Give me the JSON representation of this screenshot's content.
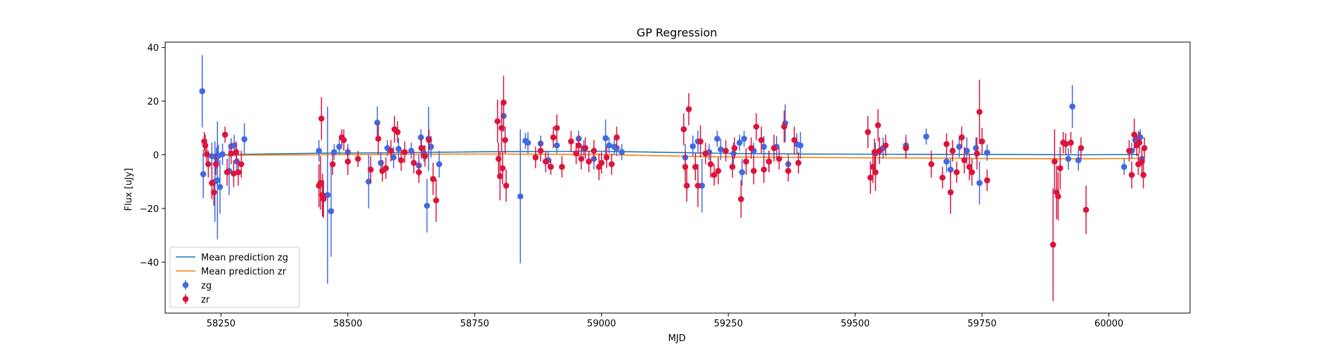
{
  "chart_data": {
    "type": "scatter",
    "title": "GP Regression",
    "xlabel": "MJD",
    "ylabel": "Flux [uJy]",
    "xlim": [
      58140,
      60160
    ],
    "ylim": [
      -59,
      42
    ],
    "xticks": [
      58250,
      58500,
      58750,
      59000,
      59250,
      59500,
      59750,
      60000
    ],
    "yticks": [
      -40,
      -20,
      0,
      20,
      40
    ],
    "grid": false,
    "legend_position": "lower-left",
    "lines": [
      {
        "name": "Mean prediction zg",
        "color": "#1f77b4",
        "x": [
          58212,
          58300,
          58450,
          58600,
          58800,
          59000,
          59100,
          59250,
          59400,
          59600,
          59800,
          59950,
          60060
        ],
        "y": [
          -0.2,
          0.2,
          0.6,
          0.8,
          1.2,
          1.3,
          1.0,
          0.5,
          0.3,
          0.2,
          0.1,
          0.0,
          0.1
        ]
      },
      {
        "name": "Mean prediction zr",
        "color": "#ff7f0e",
        "x": [
          58212,
          58300,
          58450,
          58600,
          58800,
          59000,
          59100,
          59250,
          59400,
          59600,
          59800,
          59950,
          60060
        ],
        "y": [
          -0.2,
          -0.1,
          0.0,
          0.2,
          0.3,
          0.1,
          -0.3,
          -0.8,
          -1.0,
          -1.2,
          -1.4,
          -1.5,
          -1.3
        ]
      }
    ],
    "series": [
      {
        "name": "zg",
        "color": "#4169e1",
        "points": [
          [
            58213,
            23.7,
            13.5
          ],
          [
            58215,
            -7.2,
            9
          ],
          [
            58232,
            -0.5,
            5
          ],
          [
            58238,
            -10,
            15
          ],
          [
            58241,
            -1.2,
            4
          ],
          [
            58243,
            -9.5,
            22
          ],
          [
            58245,
            -0.3,
            4
          ],
          [
            58248,
            -12,
            10
          ],
          [
            58253,
            0.2,
            4
          ],
          [
            58266,
            -6,
            9
          ],
          [
            58270,
            3.2,
            3
          ],
          [
            58276,
            3.5,
            4
          ],
          [
            58281,
            -2.5,
            5
          ],
          [
            58296,
            5.8,
            6
          ],
          [
            58443,
            1.5,
            4
          ],
          [
            58460,
            -15,
            33
          ],
          [
            58467,
            -21,
            17
          ],
          [
            58473,
            1.0,
            3
          ],
          [
            58483,
            3.0,
            3
          ],
          [
            58500,
            1.0,
            3
          ],
          [
            58541,
            -10,
            10
          ],
          [
            58558,
            12,
            6
          ],
          [
            58565,
            -3,
            4
          ],
          [
            58578,
            2.5,
            3
          ],
          [
            58590,
            -1,
            4
          ],
          [
            58600,
            2.2,
            4
          ],
          [
            58625,
            1.5,
            3
          ],
          [
            58640,
            -4,
            4
          ],
          [
            58644,
            6.5,
            3
          ],
          [
            58650,
            0.5,
            3
          ],
          [
            58656,
            -19,
            10
          ],
          [
            58659,
            6,
            12
          ],
          [
            58664,
            3,
            4
          ],
          [
            58680,
            -3.5,
            5
          ],
          [
            58807,
            14.5,
            6
          ],
          [
            58840,
            -15.5,
            25
          ],
          [
            58850,
            5.2,
            3
          ],
          [
            58855,
            4.5,
            4
          ],
          [
            58880,
            4.2,
            3
          ],
          [
            58895,
            -2,
            3
          ],
          [
            58912,
            3.5,
            3
          ],
          [
            58955,
            6,
            3
          ],
          [
            58965,
            2.5,
            3
          ],
          [
            58985,
            -1.5,
            4
          ],
          [
            59008,
            6.2,
            7
          ],
          [
            59015,
            3.5,
            3
          ],
          [
            59025,
            3,
            3
          ],
          [
            59030,
            2.5,
            3
          ],
          [
            59040,
            1.0,
            3
          ],
          [
            59165,
            -1.0,
            5
          ],
          [
            59180,
            3.2,
            4
          ],
          [
            59190,
            5.0,
            4
          ],
          [
            59198,
            -11.5,
            10
          ],
          [
            59212,
            1.0,
            3
          ],
          [
            59228,
            6,
            3
          ],
          [
            59235,
            2.0,
            4
          ],
          [
            59260,
            0.5,
            4
          ],
          [
            59272,
            4.5,
            3
          ],
          [
            59277,
            -6.5,
            5
          ],
          [
            59281,
            6,
            3
          ],
          [
            59300,
            1.5,
            3
          ],
          [
            59320,
            3,
            4
          ],
          [
            59330,
            -2.5,
            4
          ],
          [
            59345,
            3,
            4
          ],
          [
            59362,
            11.8,
            7
          ],
          [
            59368,
            -3.5,
            4
          ],
          [
            59385,
            4.0,
            4
          ],
          [
            59392,
            3.5,
            5
          ],
          [
            59540,
            0.5,
            4
          ],
          [
            59555,
            2.5,
            4
          ],
          [
            59600,
            3.5,
            4
          ],
          [
            59640,
            6.8,
            3
          ],
          [
            59680,
            -2.5,
            4
          ],
          [
            59688,
            -5.5,
            4
          ],
          [
            59705,
            3.0,
            4
          ],
          [
            59720,
            1.5,
            5
          ],
          [
            59738,
            2.5,
            4
          ],
          [
            59745,
            -10.5,
            8
          ],
          [
            59760,
            0.8,
            3
          ],
          [
            59920,
            -1.5,
            4
          ],
          [
            59928,
            18,
            8
          ],
          [
            59940,
            -2,
            4
          ],
          [
            60030,
            -4.5,
            3
          ],
          [
            60045,
            1.5,
            3
          ],
          [
            60052,
            5.5,
            3
          ],
          [
            60058,
            6,
            3
          ],
          [
            60062,
            6.5,
            3
          ],
          [
            60065,
            -1.5,
            3
          ]
        ]
      },
      {
        "name": "zr",
        "color": "#dc143c",
        "points": [
          [
            58217,
            5.0,
            3.5
          ],
          [
            58219,
            3.5,
            4
          ],
          [
            58222,
            0.2,
            4
          ],
          [
            58225,
            -3.5,
            5
          ],
          [
            58232,
            -10.5,
            6
          ],
          [
            58236,
            -14,
            5
          ],
          [
            58240,
            -3.5,
            4
          ],
          [
            58258,
            7.5,
            3
          ],
          [
            58262,
            -6.5,
            5
          ],
          [
            58270,
            0.5,
            4
          ],
          [
            58275,
            -7,
            5
          ],
          [
            58280,
            1.0,
            4
          ],
          [
            58284,
            -6.5,
            5
          ],
          [
            58290,
            -3.5,
            5
          ],
          [
            58443,
            -11.5,
            8
          ],
          [
            58446,
            -10.5,
            10
          ],
          [
            58448,
            13.5,
            8
          ],
          [
            58450,
            -15,
            8
          ],
          [
            58452,
            -16.5,
            7
          ],
          [
            58470,
            -3.5,
            4
          ],
          [
            58488,
            6.5,
            3
          ],
          [
            58492,
            5.5,
            4
          ],
          [
            58500,
            -2.5,
            5
          ],
          [
            58520,
            -1.5,
            3
          ],
          [
            58545,
            -5.5,
            5
          ],
          [
            58560,
            6,
            6
          ],
          [
            58568,
            -6,
            4
          ],
          [
            58575,
            -5,
            4
          ],
          [
            58585,
            1.5,
            4
          ],
          [
            58592,
            9.5,
            5
          ],
          [
            58598,
            8.5,
            4
          ],
          [
            58605,
            -2,
            4
          ],
          [
            58612,
            1.0,
            4
          ],
          [
            58630,
            -3,
            4
          ],
          [
            58640,
            -6.5,
            4
          ],
          [
            58645,
            2.5,
            4
          ],
          [
            58652,
            -0.5,
            4
          ],
          [
            58660,
            5.5,
            4
          ],
          [
            58668,
            -9,
            6
          ],
          [
            58674,
            -17,
            8
          ],
          [
            58795,
            12.5,
            8
          ],
          [
            58797,
            -1.5,
            6
          ],
          [
            58800,
            -8,
            9
          ],
          [
            58803,
            10,
            9
          ],
          [
            58805,
            -5,
            6
          ],
          [
            58807,
            19.5,
            10
          ],
          [
            58810,
            5.5,
            5
          ],
          [
            58812,
            -11.5,
            6
          ],
          [
            58870,
            -1.0,
            4
          ],
          [
            58880,
            1.5,
            4
          ],
          [
            58890,
            -2.5,
            4
          ],
          [
            58900,
            -4.5,
            3
          ],
          [
            58905,
            6.5,
            4
          ],
          [
            58912,
            10,
            5
          ],
          [
            58922,
            -4.5,
            4
          ],
          [
            58940,
            5,
            4
          ],
          [
            58950,
            0.5,
            4
          ],
          [
            58955,
            3.5,
            4
          ],
          [
            58960,
            -1.5,
            4
          ],
          [
            58968,
            2.5,
            4
          ],
          [
            58975,
            -2.5,
            4
          ],
          [
            58985,
            1.5,
            4
          ],
          [
            58995,
            -4.5,
            5
          ],
          [
            59000,
            -3,
            4
          ],
          [
            59010,
            -1.0,
            4
          ],
          [
            59020,
            -3.5,
            4
          ],
          [
            59030,
            6.5,
            4
          ],
          [
            59162,
            9.5,
            6
          ],
          [
            59165,
            -4.5,
            6
          ],
          [
            59168,
            -11.5,
            6
          ],
          [
            59172,
            17,
            6
          ],
          [
            59185,
            -4.5,
            5
          ],
          [
            59190,
            -11.5,
            8
          ],
          [
            59195,
            5,
            6
          ],
          [
            59205,
            0.5,
            4
          ],
          [
            59215,
            -3.5,
            5
          ],
          [
            59222,
            -7.5,
            4
          ],
          [
            59230,
            -6,
            5
          ],
          [
            59245,
            1.5,
            4
          ],
          [
            59258,
            -4.5,
            4
          ],
          [
            59262,
            2.5,
            4
          ],
          [
            59275,
            -16.5,
            7
          ],
          [
            59285,
            -2.5,
            5
          ],
          [
            59295,
            2.5,
            4
          ],
          [
            59300,
            -6,
            5
          ],
          [
            59305,
            10.5,
            5
          ],
          [
            59315,
            5.5,
            5
          ],
          [
            59320,
            -5.5,
            5
          ],
          [
            59330,
            -2.5,
            4
          ],
          [
            59340,
            2.5,
            5
          ],
          [
            59350,
            -1.5,
            4
          ],
          [
            59360,
            10.5,
            6
          ],
          [
            59368,
            -6,
            4
          ],
          [
            59380,
            5.5,
            5
          ],
          [
            59388,
            -3,
            4
          ],
          [
            59525,
            8.5,
            6
          ],
          [
            59530,
            -8.5,
            6
          ],
          [
            59535,
            -4.5,
            6
          ],
          [
            59538,
            1.0,
            5
          ],
          [
            59540,
            -6.5,
            7
          ],
          [
            59545,
            11,
            6
          ],
          [
            59548,
            1.5,
            5
          ],
          [
            59560,
            3.5,
            4
          ],
          [
            59600,
            2.5,
            4
          ],
          [
            59650,
            -3.5,
            5
          ],
          [
            59672,
            -8.5,
            4
          ],
          [
            59680,
            4,
            4
          ],
          [
            59688,
            -14,
            8
          ],
          [
            59692,
            1.5,
            4
          ],
          [
            59700,
            -6.5,
            4
          ],
          [
            59710,
            6.5,
            4
          ],
          [
            59715,
            -2,
            5
          ],
          [
            59725,
            -4.5,
            5
          ],
          [
            59730,
            -6.5,
            5
          ],
          [
            59740,
            0.5,
            6
          ],
          [
            59745,
            16,
            12
          ],
          [
            59750,
            5,
            5
          ],
          [
            59760,
            -9.5,
            4
          ],
          [
            59890,
            -33.5,
            21
          ],
          [
            59893,
            -2.5,
            12
          ],
          [
            59897,
            -14,
            10
          ],
          [
            59900,
            -15.5,
            9
          ],
          [
            59904,
            -5,
            8
          ],
          [
            59910,
            4.5,
            4
          ],
          [
            59915,
            4,
            4
          ],
          [
            59925,
            4.5,
            4
          ],
          [
            59945,
            2.5,
            4
          ],
          [
            59955,
            -20.5,
            9
          ],
          [
            60040,
            1.5,
            4
          ],
          [
            60045,
            -7.5,
            5
          ],
          [
            60050,
            7.5,
            6
          ],
          [
            60055,
            3.5,
            4
          ],
          [
            60058,
            -3.5,
            4
          ],
          [
            60060,
            4.5,
            4
          ],
          [
            60065,
            -2.5,
            5
          ],
          [
            60068,
            -7.5,
            5
          ],
          [
            60070,
            2.5,
            4
          ]
        ]
      }
    ]
  }
}
